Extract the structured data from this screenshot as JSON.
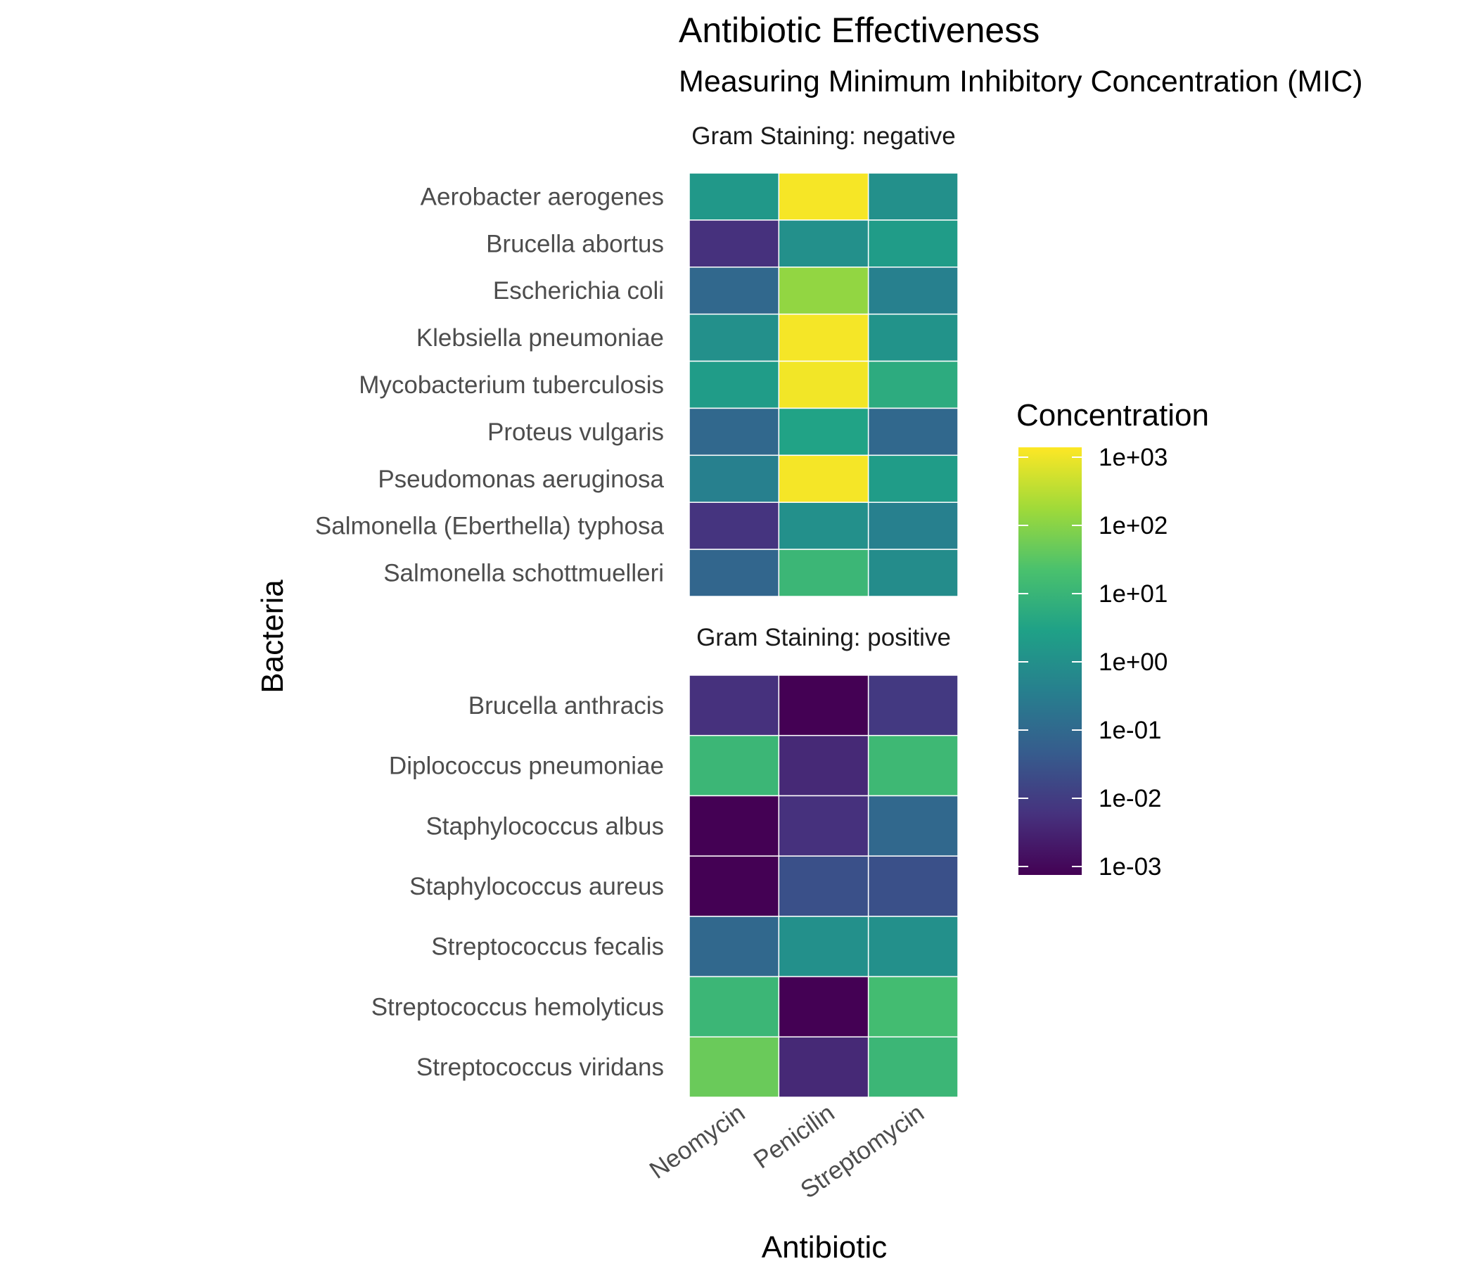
{
  "chart_data": {
    "type": "heatmap",
    "title": "Antibiotic Effectiveness",
    "subtitle": "Measuring Minimum Inhibitory Concentration (MIC)",
    "xlabel": "Antibiotic",
    "ylabel": "Bacteria",
    "color_scale": "log",
    "legend": {
      "title": "Concentration",
      "placement": "right",
      "ticks": [
        "1e+03",
        "1e+02",
        "1e+01",
        "1e+00",
        "1e-01",
        "1e-02",
        "1e-03"
      ],
      "range": [
        0.001,
        1000
      ]
    },
    "colors": [
      "#440154",
      "#46327e",
      "#365c8d",
      "#277f8e",
      "#1fa187",
      "#4ac16d",
      "#a0da39",
      "#fde725"
    ],
    "antibiotics": [
      "Neomycin",
      "Penicilin",
      "Streptomycin"
    ],
    "panels": [
      {
        "label": "Gram Staining: negative",
        "bacteria": [
          "Aerobacter aerogenes",
          "Brucella abortus",
          "Escherichia coli",
          "Klebsiella pneumoniae",
          "Mycobacterium tuberculosis",
          "Proteus vulgaris",
          "Pseudomonas aeruginosa",
          "Salmonella (Eberthella) typhosa",
          "Salmonella schottmuelleri"
        ],
        "values": [
          [
            1.6,
            870,
            1.0
          ],
          [
            0.007,
            1.0,
            2.0
          ],
          [
            0.1,
            100,
            0.4
          ],
          [
            1.0,
            850,
            1.2
          ],
          [
            2.0,
            800,
            5.0
          ],
          [
            0.1,
            3.0,
            0.1
          ],
          [
            0.4,
            850,
            2.0
          ],
          [
            0.008,
            1.0,
            0.4
          ],
          [
            0.09,
            10,
            0.8
          ]
        ]
      },
      {
        "label": "Gram Staining: positive",
        "bacteria": [
          "Brucella anthracis",
          "Diplococcus pneumoniae",
          "Staphylococcus albus",
          "Staphylococcus aureus",
          "Streptococcus fecalis",
          "Streptococcus hemolyticus",
          "Streptococcus viridans"
        ],
        "values": [
          [
            0.007,
            0.001,
            0.01
          ],
          [
            10,
            0.005,
            11
          ],
          [
            0.001,
            0.007,
            0.1
          ],
          [
            0.001,
            0.03,
            0.03
          ],
          [
            0.1,
            1.0,
            1.0
          ],
          [
            10,
            0.001,
            14
          ],
          [
            40,
            0.005,
            10
          ]
        ]
      }
    ]
  }
}
